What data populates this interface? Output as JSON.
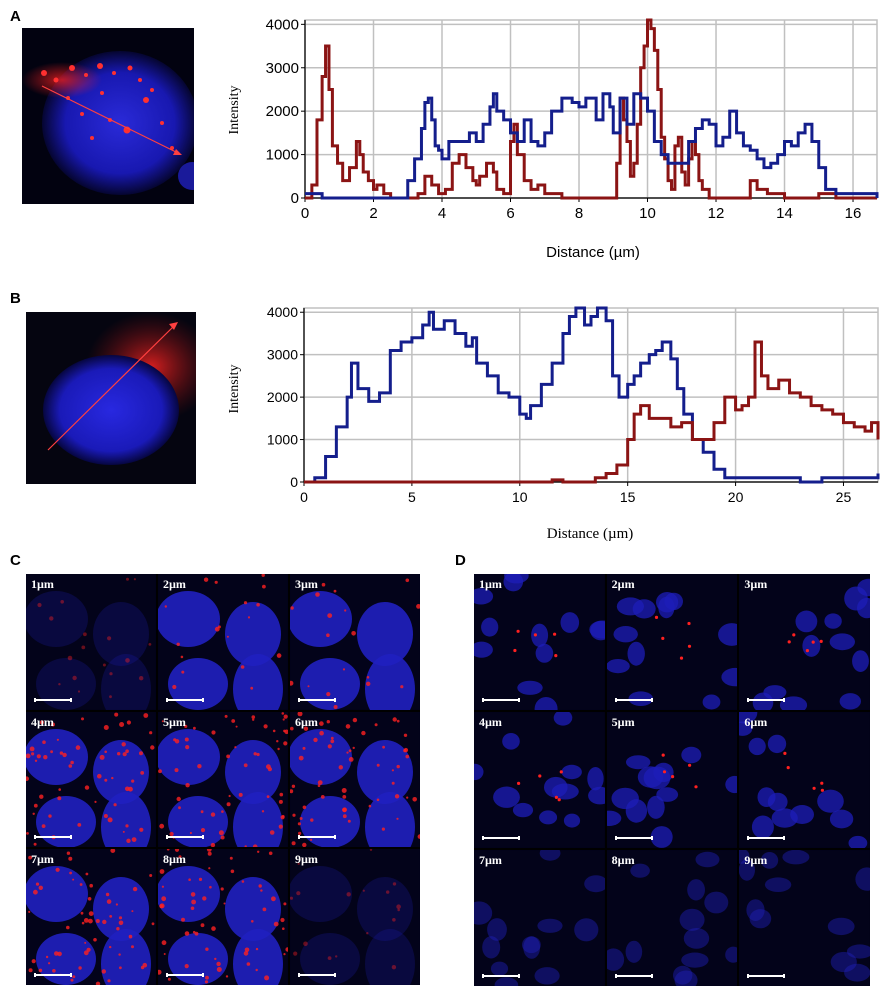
{
  "panels": {
    "a": {
      "label": "A"
    },
    "b": {
      "label": "B"
    },
    "c": {
      "label": "C",
      "tiles": [
        "1µm",
        "2µm",
        "3µm",
        "4µm",
        "5µm",
        "6µm",
        "7µm",
        "8µm",
        "9µm"
      ]
    },
    "d": {
      "label": "D",
      "tiles": [
        "1µm",
        "2µm",
        "3µm",
        "4µm",
        "5µm",
        "6µm",
        "7µm",
        "8µm",
        "9µm"
      ]
    }
  },
  "colors": {
    "red_series": "#8b1414",
    "blue_series": "#141e8c",
    "grid": "#c0c0c0"
  },
  "chart_data": [
    {
      "type": "line",
      "xlabel": "Distance (µm)",
      "ylabel": "Intensity",
      "xlim": [
        0,
        16.7
      ],
      "ylim": [
        0,
        4100
      ],
      "xticks": [
        0,
        2,
        4,
        6,
        8,
        10,
        12,
        14,
        16
      ],
      "yticks": [
        0,
        1000,
        2000,
        3000,
        4000
      ],
      "grid": true,
      "series": [
        {
          "color": "#8b1414",
          "x": [
            0,
            0.2,
            0.35,
            0.5,
            0.6,
            0.7,
            0.8,
            0.95,
            1.1,
            1.3,
            1.5,
            1.6,
            1.7,
            1.85,
            2.0,
            2.1,
            2.3,
            2.5,
            2.8,
            3.1,
            3.3,
            3.5,
            3.7,
            3.9,
            4.1,
            4.3,
            4.5,
            4.7,
            4.9,
            5.0,
            5.1,
            5.3,
            5.5,
            5.6,
            5.8,
            6.0,
            6.1,
            6.2,
            6.4,
            6.6,
            6.8,
            7.0,
            7.5,
            8.0,
            8.5,
            8.8,
            9.0,
            9.1,
            9.2,
            9.3,
            9.4,
            9.5,
            9.6,
            9.7,
            9.8,
            9.9,
            10.0,
            10.1,
            10.2,
            10.3,
            10.4,
            10.5,
            10.6,
            10.7,
            10.8,
            10.9,
            11.0,
            11.1,
            11.2,
            11.3,
            11.4,
            11.5,
            11.6,
            11.8,
            12.0,
            12.5,
            12.8,
            13.0,
            13.2,
            13.5,
            14.0,
            14.5,
            15.0,
            15.5,
            16.0,
            16.7
          ],
          "y": [
            0,
            300,
            1800,
            2800,
            3500,
            2500,
            1200,
            800,
            400,
            700,
            1300,
            1000,
            600,
            400,
            200,
            300,
            100,
            0,
            0,
            0,
            100,
            500,
            300,
            100,
            200,
            800,
            1000,
            700,
            400,
            300,
            500,
            800,
            600,
            200,
            100,
            1300,
            1700,
            1000,
            400,
            200,
            300,
            100,
            0,
            0,
            0,
            0,
            0,
            800,
            2300,
            1800,
            1300,
            500,
            800,
            1700,
            3000,
            3500,
            4100,
            3900,
            3400,
            2500,
            1400,
            900,
            400,
            200,
            1200,
            1400,
            600,
            300,
            900,
            1300,
            1000,
            400,
            200,
            0,
            0,
            0,
            0,
            400,
            200,
            100,
            0,
            0,
            100,
            0,
            0,
            0
          ]
        },
        {
          "color": "#141e8c",
          "x": [
            0,
            0.5,
            1.0,
            1.5,
            2.0,
            2.5,
            3.0,
            3.2,
            3.4,
            3.5,
            3.6,
            3.7,
            3.8,
            3.9,
            4.0,
            4.2,
            4.5,
            4.8,
            5.0,
            5.2,
            5.4,
            5.5,
            5.6,
            5.8,
            6.0,
            6.2,
            6.4,
            6.6,
            6.8,
            7.0,
            7.2,
            7.5,
            7.8,
            8.0,
            8.2,
            8.5,
            8.7,
            8.9,
            9.0,
            9.2,
            9.4,
            9.6,
            9.8,
            10.0,
            10.2,
            10.4,
            10.6,
            10.8,
            11.0,
            11.2,
            11.4,
            11.6,
            11.8,
            12.0,
            12.2,
            12.4,
            12.6,
            12.8,
            13.0,
            13.2,
            13.4,
            13.6,
            13.8,
            14.0,
            14.2,
            14.4,
            14.6,
            14.8,
            15.0,
            15.2,
            15.5,
            16.0,
            16.7
          ],
          "y": [
            100,
            0,
            0,
            0,
            0,
            0,
            400,
            900,
            1600,
            2200,
            2300,
            1800,
            1200,
            1100,
            900,
            1300,
            1300,
            1500,
            1300,
            1700,
            2100,
            2400,
            2000,
            1800,
            1500,
            1300,
            1800,
            1300,
            1200,
            1500,
            2000,
            2300,
            2200,
            2100,
            2300,
            1800,
            2400,
            2100,
            1500,
            2300,
            1700,
            2400,
            2300,
            2000,
            1300,
            1000,
            800,
            800,
            800,
            1300,
            1600,
            1800,
            1700,
            1200,
            1400,
            2000,
            1500,
            1200,
            1100,
            900,
            700,
            800,
            1000,
            1300,
            1200,
            1500,
            1700,
            1300,
            700,
            200,
            100,
            100,
            0
          ]
        }
      ]
    },
    {
      "type": "line",
      "xlabel": "Distance (µm)",
      "ylabel": "Intensity",
      "xlim": [
        0,
        26.6
      ],
      "ylim": [
        0,
        4100
      ],
      "xticks": [
        0,
        5,
        10,
        15,
        20,
        25
      ],
      "yticks": [
        0,
        1000,
        2000,
        3000,
        4000
      ],
      "grid": true,
      "series": [
        {
          "color": "#141e8c",
          "x": [
            0,
            0.5,
            1.0,
            1.5,
            2.0,
            2.2,
            2.5,
            3.0,
            3.5,
            4.0,
            4.5,
            5.0,
            5.5,
            5.8,
            6.0,
            6.5,
            7.0,
            7.5,
            7.8,
            8.0,
            8.5,
            9.0,
            9.5,
            10.0,
            10.3,
            10.5,
            11.0,
            11.5,
            12.0,
            12.3,
            12.6,
            13.0,
            13.3,
            13.6,
            14.0,
            14.3,
            14.6,
            15.0,
            15.3,
            15.6,
            16.0,
            16.3,
            16.6,
            17.0,
            17.3,
            17.6,
            18.0,
            18.5,
            19.0,
            19.5,
            20.0,
            21.0,
            22.0,
            23.0,
            24.0,
            25.0,
            26.0,
            26.6
          ],
          "y": [
            0,
            100,
            600,
            1300,
            2000,
            2800,
            2200,
            1900,
            2100,
            3100,
            3300,
            3400,
            3700,
            4000,
            3600,
            3800,
            3500,
            3200,
            3400,
            2800,
            2500,
            2100,
            2000,
            1600,
            1500,
            1800,
            2300,
            2800,
            3500,
            3900,
            4100,
            3700,
            3900,
            4100,
            3800,
            2500,
            2000,
            2300,
            2500,
            2800,
            3000,
            3100,
            3300,
            2900,
            2200,
            1600,
            1000,
            700,
            300,
            100,
            100,
            100,
            100,
            0,
            100,
            100,
            100,
            200
          ]
        },
        {
          "color": "#8b1414",
          "x": [
            0,
            2,
            4,
            6,
            8,
            10,
            11,
            11.5,
            12,
            12.5,
            13,
            13.5,
            14,
            14.5,
            15,
            15.3,
            15.6,
            16,
            16.5,
            17,
            17.5,
            18,
            18.5,
            19,
            19.5,
            20,
            20.3,
            20.6,
            20.9,
            21.2,
            21.5,
            22,
            22.5,
            23,
            23.5,
            24,
            24.5,
            25,
            25.5,
            26,
            26.3,
            26.6
          ],
          "y": [
            0,
            0,
            0,
            0,
            0,
            0,
            0,
            50,
            0,
            0,
            0,
            100,
            200,
            400,
            1000,
            1600,
            1800,
            1500,
            1500,
            1300,
            1400,
            1000,
            1000,
            1400,
            2000,
            1700,
            1800,
            2000,
            3300,
            2500,
            2200,
            2400,
            2100,
            2000,
            1800,
            1700,
            1600,
            1400,
            1300,
            1200,
            1400,
            1000
          ]
        }
      ]
    }
  ]
}
